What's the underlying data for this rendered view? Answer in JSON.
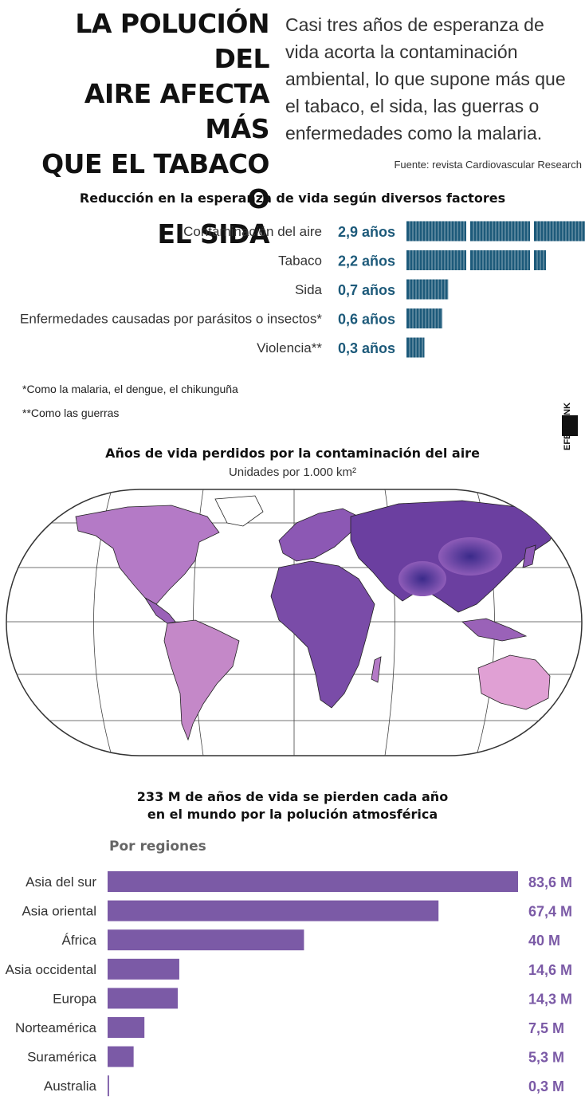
{
  "header": {
    "headline_lines": [
      "LA POLUCIÓN DEL",
      "AIRE AFECTA MÁS",
      "QUE EL TABACO O",
      "EL SIDA"
    ],
    "intro_lines": [
      "Casi tres años de esperanza de",
      "vida acorta la contaminación",
      "ambiental, lo que supone más que",
      "el tabaco, el sida, las guerras o",
      "enfermedades como la malaria."
    ],
    "source": "Fuente: revista Cardiovascular Research"
  },
  "logo": {
    "text": "EFE ILLINK"
  },
  "chart_data": [
    {
      "type": "bar",
      "orientation": "horizontal",
      "title": "Reducción en la esperanza de vida según diversos factores",
      "categories": [
        "Contaminación del aire",
        "Tabaco",
        "Sida",
        "Enfermedades causadas por parásitos o insectos*",
        "Violencia**"
      ],
      "values": [
        2.9,
        2.2,
        0.7,
        0.6,
        0.3
      ],
      "value_labels": [
        "2,9 años",
        "2,2 años",
        "0,7 años",
        "0,6 años",
        "0,3 años"
      ],
      "unit": "años",
      "bar_color": "#1d5a7a",
      "label_color": "#1d5a7a",
      "footnotes": [
        "*Como la malaria, el dengue, el chikunguña",
        "**Como las guerras"
      ]
    },
    {
      "type": "heatmap",
      "title": "Años de vida perdidos por la contaminación del aire",
      "subtitle": "Unidades por 1.000 km²",
      "projection": "world-map",
      "colors": {
        "low": "#e8a8d8",
        "mid": "#a66cc0",
        "high": "#3a2a8a"
      }
    },
    {
      "type": "bar",
      "orientation": "horizontal",
      "title_lines": [
        "233 M de años de vida se pierden cada año",
        "en el mundo por la polución atmosférica"
      ],
      "subtitle": "Por regiones",
      "categories": [
        "Asia del sur",
        "Asia oriental",
        "África",
        "Asia occidental",
        "Europa",
        "Norteamérica",
        "Suramérica",
        "Australia"
      ],
      "values": [
        83.6,
        67.4,
        40,
        14.6,
        14.3,
        7.5,
        5.3,
        0.3
      ],
      "value_labels": [
        "83,6 M",
        "67,4 M",
        "40 M",
        "14,6 M",
        "14,3 M",
        "7,5 M",
        "5,3 M",
        "0,3 M"
      ],
      "unit": "M",
      "bar_color": "#7b5aa6",
      "label_color": "#7b5aa6"
    }
  ]
}
